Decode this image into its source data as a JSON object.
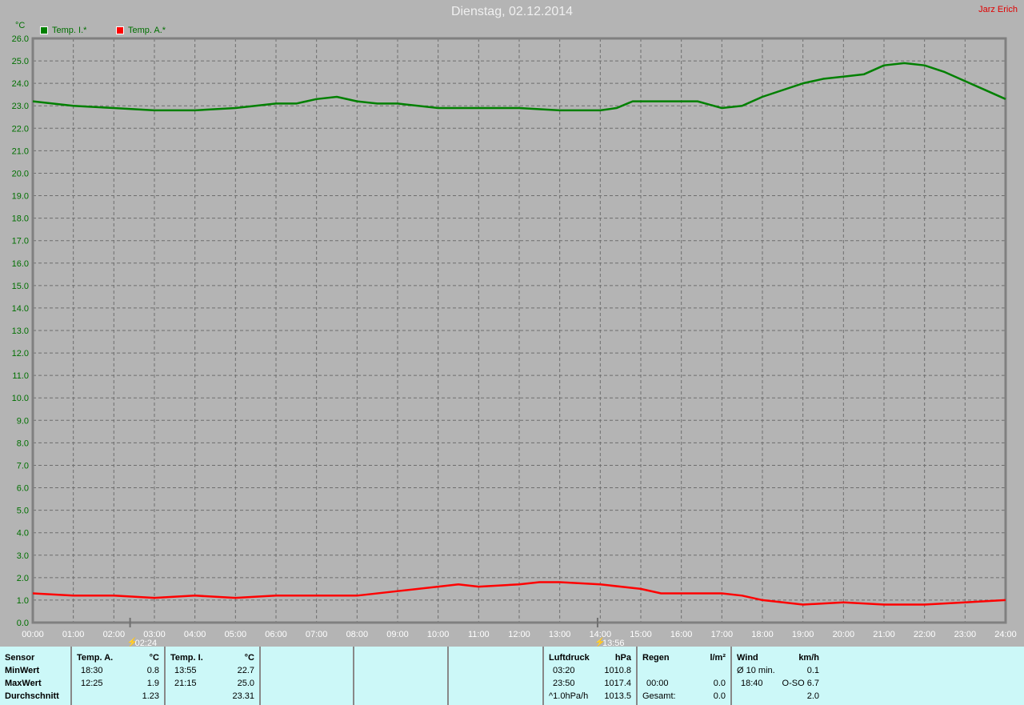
{
  "header": {
    "title": "Dienstag, 02.12.2014",
    "author": "Jarz Erich"
  },
  "chart_data": {
    "type": "line",
    "title": "Dienstag, 02.12.2014",
    "ylabel": "°C",
    "ylim": [
      0,
      26
    ],
    "xlim": [
      "00:00",
      "24:00"
    ],
    "grid": true,
    "legend_placement": "top-left",
    "y_ticks": [
      "0.0",
      "1.0",
      "2.0",
      "3.0",
      "4.0",
      "5.0",
      "6.0",
      "7.0",
      "8.0",
      "9.0",
      "10.0",
      "11.0",
      "12.0",
      "13.0",
      "14.0",
      "15.0",
      "16.0",
      "17.0",
      "18.0",
      "19.0",
      "20.0",
      "21.0",
      "22.0",
      "23.0",
      "24.0",
      "25.0",
      "26.0"
    ],
    "x_ticks": [
      "00:00",
      "01:00",
      "02:00",
      "03:00",
      "04:00",
      "05:00",
      "06:00",
      "07:00",
      "08:00",
      "09:00",
      "10:00",
      "11:00",
      "12:00",
      "13:00",
      "14:00",
      "15:00",
      "16:00",
      "17:00",
      "18:00",
      "19:00",
      "20:00",
      "21:00",
      "22:00",
      "23:00",
      "24:00"
    ],
    "markers": [
      {
        "time": "02:24",
        "label": "02:24"
      },
      {
        "time": "13:56",
        "label": "13:56"
      }
    ],
    "series": [
      {
        "name": "Temp. I.*",
        "color": "#008000",
        "x": [
          0,
          1,
          2,
          3,
          4,
          5,
          6,
          6.5,
          7,
          7.5,
          8,
          8.5,
          9,
          10,
          11,
          12,
          13,
          14,
          14.4,
          14.8,
          15.5,
          16,
          16.4,
          17,
          17.5,
          18,
          19,
          19.5,
          20,
          20.5,
          21,
          21.5,
          22,
          22.5,
          23,
          23.5,
          24
        ],
        "y": [
          23.2,
          23.0,
          22.9,
          22.8,
          22.8,
          22.9,
          23.1,
          23.1,
          23.3,
          23.4,
          23.2,
          23.1,
          23.1,
          22.9,
          22.9,
          22.9,
          22.8,
          22.8,
          22.9,
          23.2,
          23.2,
          23.2,
          23.2,
          22.9,
          23.0,
          23.4,
          24.0,
          24.2,
          24.3,
          24.4,
          24.8,
          24.9,
          24.8,
          24.5,
          24.1,
          23.7,
          23.3
        ]
      },
      {
        "name": "Temp. A.*",
        "color": "#ff0000",
        "x": [
          0,
          1,
          2,
          3,
          4,
          5,
          6,
          7,
          8,
          9,
          10,
          10.5,
          11,
          12,
          12.5,
          13,
          14,
          15,
          15.5,
          16,
          17,
          17.5,
          18,
          19,
          20,
          21,
          22,
          23,
          24
        ],
        "y": [
          1.3,
          1.2,
          1.2,
          1.1,
          1.2,
          1.1,
          1.2,
          1.2,
          1.2,
          1.4,
          1.6,
          1.7,
          1.6,
          1.7,
          1.8,
          1.8,
          1.7,
          1.5,
          1.3,
          1.3,
          1.3,
          1.2,
          1.0,
          0.8,
          0.9,
          0.8,
          0.8,
          0.9,
          1.0
        ]
      }
    ]
  },
  "table": {
    "sensor": {
      "header": "Sensor",
      "rows": [
        "MinWert",
        "MaxWert",
        "Durchschnitt"
      ]
    },
    "temp_a": {
      "header": "Temp. A.",
      "unit": "°C",
      "min_time": "18:30",
      "min": "0.8",
      "max_time": "12:25",
      "max": "1.9",
      "avg": "1.23"
    },
    "temp_i": {
      "header": "Temp. I.",
      "unit": "°C",
      "min_time": "13:55",
      "min": "22.7",
      "max_time": "21:15",
      "max": "25.0",
      "avg": "23.31"
    },
    "luftdruck": {
      "header": "Luftdruck",
      "unit": "hPa",
      "r1a": "03:20",
      "r1b": "1010.8",
      "r2a": "23:50",
      "r2b": "1017.4",
      "r3a": "^1.0hPa/h",
      "r3b": "1013.5"
    },
    "regen": {
      "header": "Regen",
      "unit": "l/m²",
      "r2a": "00:00",
      "r2b": "0.0",
      "r3a": "Gesamt:",
      "r3b": "0.0"
    },
    "wind": {
      "header": "Wind",
      "unit": "km/h",
      "r1a": "Ø 10 min.",
      "r1b": "0.1",
      "r2a": "18:40",
      "r2b": "O-SO 6.7",
      "r3b": "2.0"
    }
  }
}
